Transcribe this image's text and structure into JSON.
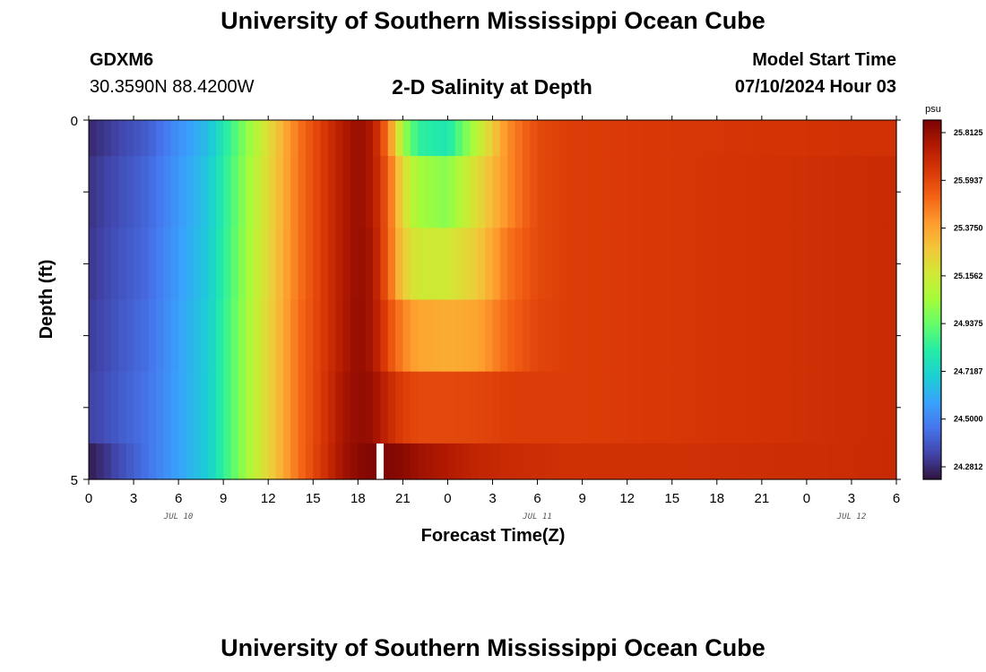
{
  "header": {
    "title": "University of Southern Mississippi Ocean Cube",
    "station": "GDXM6",
    "coords": "30.3590N  88.4200W",
    "subtitle": "2-D Salinity at Depth",
    "model_start_label": "Model Start Time",
    "model_start_value": "07/10/2024 Hour 03"
  },
  "footer": {
    "title": "University of Southern Mississippi Ocean Cube"
  },
  "chart_data": {
    "type": "heatmap",
    "title": "2-D Salinity at Depth",
    "xlabel": "Forecast Time(Z)",
    "ylabel": "Depth (ft)",
    "x_tick_labels": [
      "0",
      "3",
      "6",
      "9",
      "12",
      "15",
      "18",
      "21",
      "0",
      "3",
      "6",
      "9",
      "12",
      "15",
      "18",
      "21",
      "0",
      "3",
      "6"
    ],
    "day_labels": [
      "JUL 10",
      "JUL 11",
      "JUL 12"
    ],
    "y_tick_labels": [
      "0",
      "5"
    ],
    "ylim": [
      0,
      5
    ],
    "x_hours_from_start": [
      0,
      54
    ],
    "colorbar": {
      "unit": "psu",
      "min": 24.28125,
      "max": 25.8125,
      "tick_labels": [
        "25.8125",
        "25.5937",
        "25.3750",
        "25.1562",
        "24.9375",
        "24.7187",
        "24.5000",
        "24.2812"
      ],
      "colors": [
        "#30123b",
        "#4145ab",
        "#4675ed",
        "#39a2fc",
        "#1bcfd4",
        "#24eca6",
        "#61fc6c",
        "#a4fc3b",
        "#d1e834",
        "#f3c63a",
        "#fe9b2d",
        "#f36315",
        "#d93806",
        "#b11901",
        "#7a0403"
      ]
    },
    "depth_bins": [
      0,
      0.5,
      1.5,
      2.5,
      3.5,
      4.5,
      5.0
    ],
    "salinity_profile_note": "",
    "keypoints_hours": [
      0,
      4,
      8,
      10.5,
      14,
      16,
      17,
      18,
      19,
      20,
      21,
      22,
      24,
      26,
      28,
      30,
      32,
      40,
      54
    ],
    "keypoints_salinity": {
      "0.0-0.5": [
        24.33,
        24.45,
        24.68,
        25.0,
        25.45,
        25.62,
        25.7,
        25.76,
        25.7,
        25.45,
        25.05,
        24.85,
        24.8,
        25.1,
        25.4,
        25.55,
        25.58,
        25.6,
        25.62
      ],
      "0.5-1.5": [
        24.35,
        24.47,
        24.7,
        25.02,
        25.45,
        25.62,
        25.7,
        25.76,
        25.7,
        25.5,
        25.2,
        25.05,
        25.0,
        25.2,
        25.4,
        25.55,
        25.58,
        25.6,
        25.64
      ],
      "1.5-2.5": [
        24.36,
        24.48,
        24.71,
        25.03,
        25.45,
        25.62,
        25.7,
        25.76,
        25.72,
        25.5,
        25.25,
        25.15,
        25.15,
        25.25,
        25.45,
        25.55,
        25.58,
        25.6,
        25.64
      ],
      "2.5-3.5": [
        24.37,
        24.49,
        24.72,
        25.04,
        25.46,
        25.62,
        25.7,
        25.77,
        25.72,
        25.55,
        25.42,
        25.35,
        25.33,
        25.35,
        25.48,
        25.56,
        25.58,
        25.6,
        25.64
      ],
      "3.5-4.5": [
        24.38,
        24.5,
        24.72,
        25.04,
        25.46,
        25.63,
        25.72,
        25.77,
        25.75,
        25.65,
        25.58,
        25.55,
        25.55,
        25.56,
        25.58,
        25.58,
        25.58,
        25.6,
        25.64
      ],
      "4.5-5.0": [
        24.3,
        24.5,
        24.72,
        25.04,
        25.46,
        25.64,
        25.73,
        25.78,
        25.8,
        25.8,
        25.78,
        25.74,
        25.7,
        25.66,
        25.64,
        25.63,
        25.62,
        25.62,
        25.64
      ]
    }
  }
}
